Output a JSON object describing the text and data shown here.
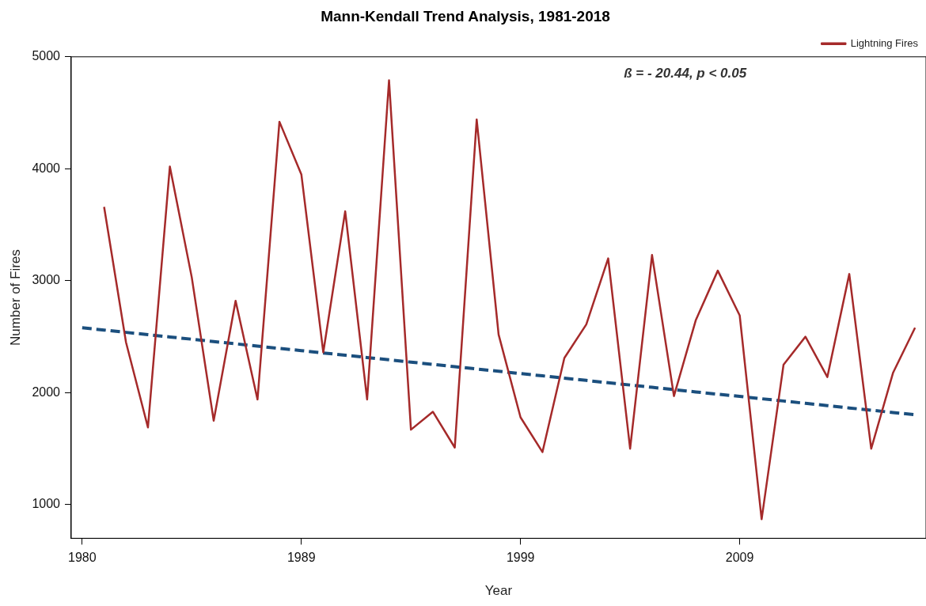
{
  "chart_data": {
    "type": "line",
    "title": "Mann-Kendall Trend Analysis, 1981-2018",
    "xlabel": "Year",
    "ylabel": "Number of Fires",
    "categories": [
      "1980",
      null,
      null,
      null,
      null,
      null,
      null,
      null,
      null,
      null,
      "1989",
      null,
      null,
      null,
      null,
      null,
      null,
      null,
      null,
      null,
      "1999",
      null,
      null,
      null,
      null,
      null,
      null,
      null,
      null,
      null,
      "2009",
      null,
      null,
      null,
      null,
      null,
      null,
      null,
      null
    ],
    "series": [
      {
        "name": "Lightning Fires",
        "color": "#a52a2a",
        "line_style": "solid",
        "values": [
          null,
          3660,
          2450,
          1690,
          4020,
          3030,
          1750,
          2820,
          1940,
          4420,
          3950,
          2360,
          3620,
          1940,
          4790,
          1670,
          1830,
          1510,
          4440,
          2520,
          1780,
          1470,
          2310,
          2610,
          3200,
          1500,
          3230,
          1970,
          2650,
          3090,
          2690,
          870,
          2250,
          2500,
          2140,
          3060,
          1500,
          2180,
          2580
        ]
      },
      {
        "type": "line",
        "color": "#1b4f7e",
        "line_style": "dashed",
        "values": [
          2580,
          2560,
          2539,
          2519,
          2498,
          2478,
          2457,
          2437,
          2416,
          2396,
          2376,
          2355,
          2335,
          2314,
          2294,
          2273,
          2253,
          2232,
          2212,
          2192,
          2171,
          2151,
          2130,
          2110,
          2089,
          2069,
          2048,
          2028,
          2007,
          1987,
          1967,
          1946,
          1926,
          1905,
          1885,
          1864,
          1844,
          1823,
          1803
        ]
      }
    ],
    "ylim": [
      700,
      5000
    ],
    "yticks": [
      1000,
      2000,
      3000,
      4000,
      5000
    ],
    "grid": false,
    "legend": "top right",
    "marker": "none",
    "annotations": [
      "ß = - 20.44, p < 0.05"
    ]
  }
}
